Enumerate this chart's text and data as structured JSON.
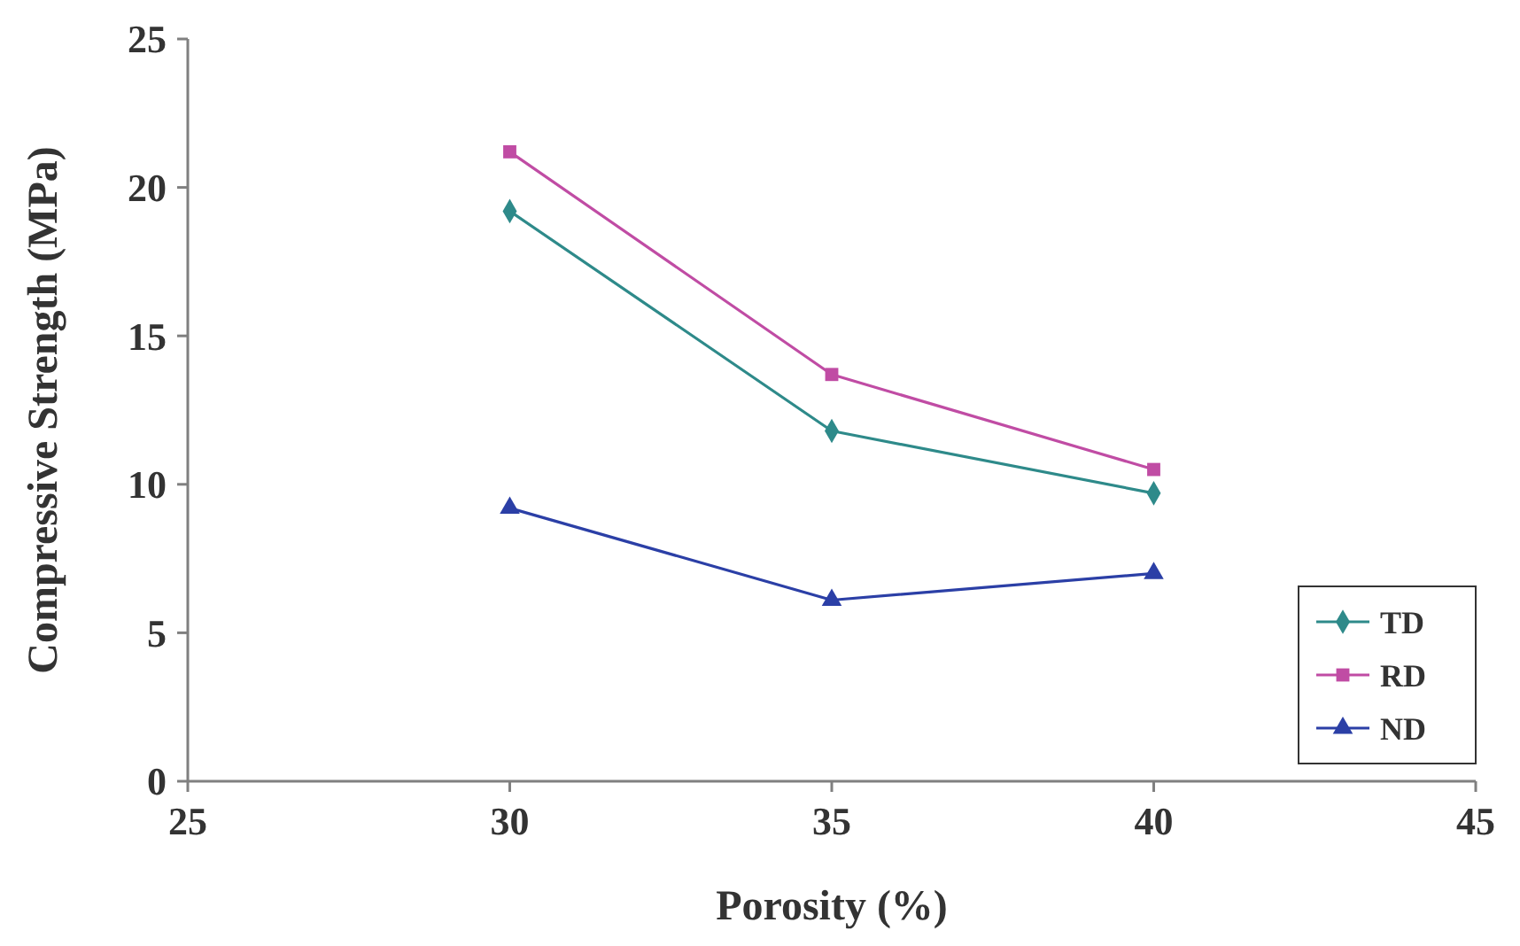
{
  "chart_data": {
    "type": "line",
    "xlabel": "Porosity (%)",
    "ylabel": "Compressive Strength (MPa)",
    "x": [
      30,
      35,
      40
    ],
    "series": [
      {
        "name": "TD",
        "color": "#2e8a8a",
        "marker": "diamond",
        "values": [
          19.2,
          11.8,
          9.7
        ]
      },
      {
        "name": "RD",
        "color": "#c04ca4",
        "marker": "square",
        "values": [
          21.2,
          13.7,
          10.5
        ]
      },
      {
        "name": "ND",
        "color": "#2b3fa6",
        "marker": "triangle",
        "values": [
          9.2,
          6.1,
          7.0
        ]
      }
    ],
    "xlim": [
      25,
      45
    ],
    "xticks": [
      25,
      30,
      35,
      40,
      45
    ],
    "ylim": [
      0,
      25
    ],
    "yticks": [
      0,
      5,
      10,
      15,
      20,
      25
    ],
    "grid": false,
    "legend": "bottom right"
  }
}
